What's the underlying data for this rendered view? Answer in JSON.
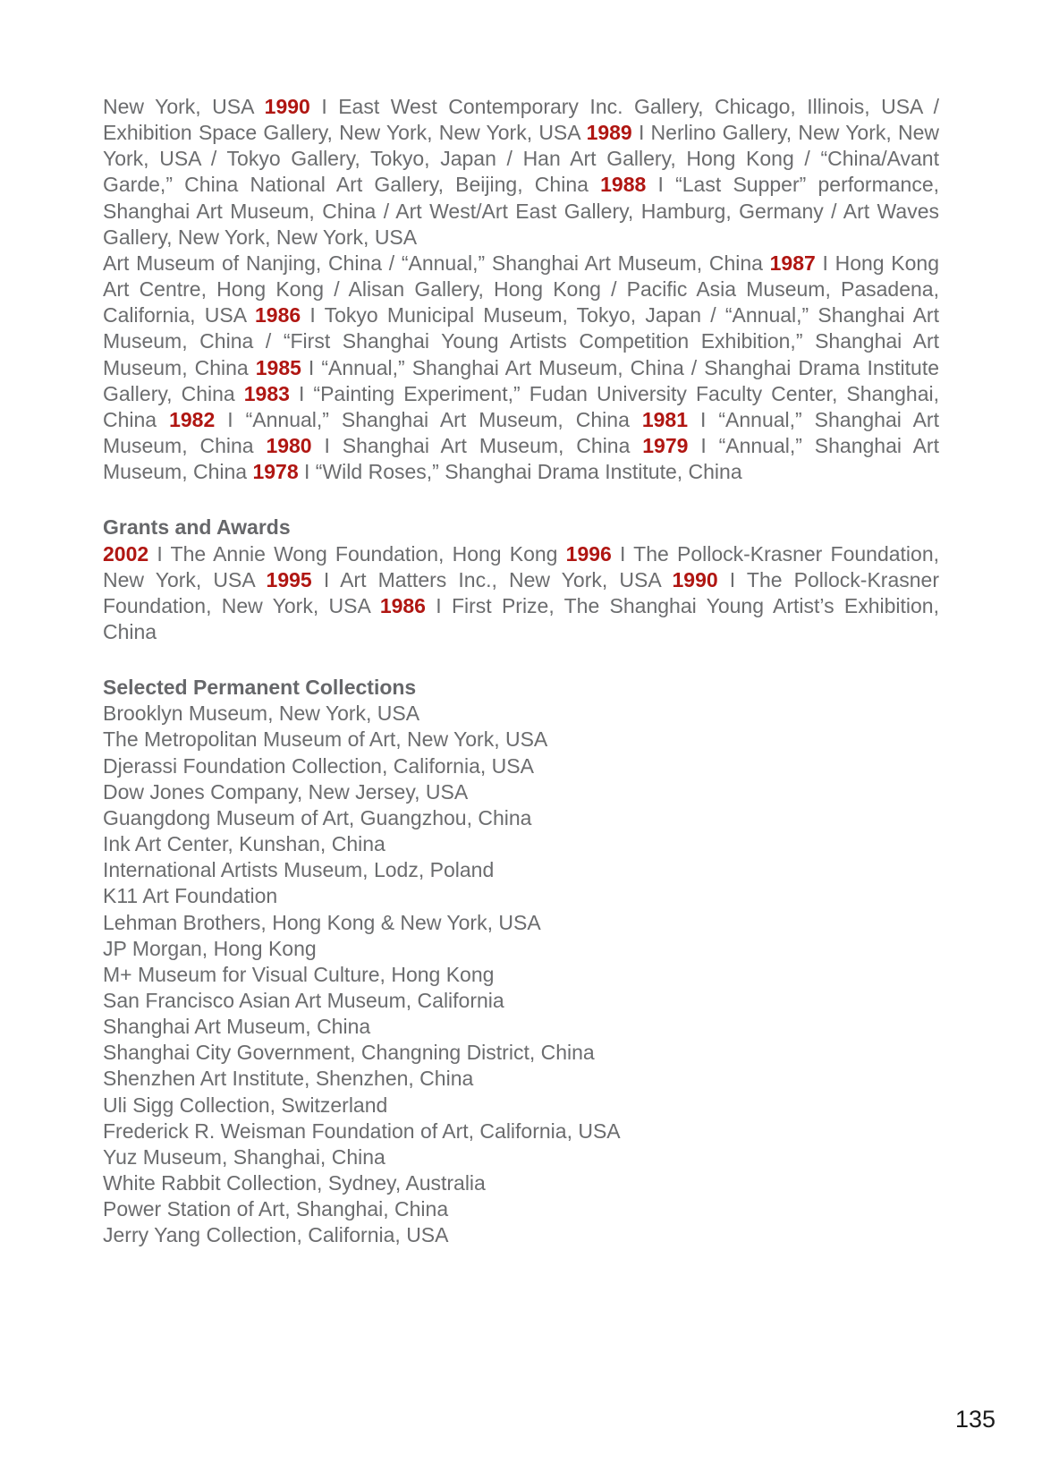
{
  "page": {
    "number": "135"
  },
  "colors": {
    "body_text": "#6b6c6e",
    "year_accent": "#b01612",
    "page_number": "#1b1b1b",
    "background": "#ffffff"
  },
  "exhibitions": {
    "paragraphs": [
      {
        "runs": [
          {
            "t": "New York, USA "
          },
          {
            "t": "1990",
            "year": true
          },
          {
            "t": " I East West Contemporary Inc. Gallery, Chicago, Illinois, USA / Exhibition Space Gallery, New York, New York, USA "
          },
          {
            "t": "1989",
            "year": true
          },
          {
            "t": " I Nerlino Gallery, New York, New York, USA / Tokyo Gallery, Tokyo, Japan / Han Art Gallery, Hong Kong / “China/Avant Garde,” China National Art Gallery, Beijing, China "
          },
          {
            "t": "1988",
            "year": true
          },
          {
            "t": " I “Last Supper” performance, Shanghai Art Museum, China / Art West/Art East Gallery, Hamburg, Germany / Art Waves Gallery, New York, New York, USA"
          }
        ]
      },
      {
        "runs": [
          {
            "t": "Art Museum of Nanjing, China / “Annual,” Shanghai Art Museum, China "
          },
          {
            "t": "1987",
            "year": true
          },
          {
            "t": " I Hong Kong Art Centre, Hong Kong / Alisan Gallery, Hong Kong / Pacific Asia Museum, Pasadena, California, USA "
          },
          {
            "t": "1986",
            "year": true
          },
          {
            "t": " I Tokyo Municipal Museum, Tokyo, Japan / “Annual,” Shanghai Art Museum, China / “First Shanghai Young Artists Competition Exhibition,” Shanghai Art Museum, China "
          },
          {
            "t": "1985",
            "year": true
          },
          {
            "t": " I “Annual,” Shanghai Art Museum, China / Shanghai Drama Institute Gallery, China "
          },
          {
            "t": "1983",
            "year": true
          },
          {
            "t": " I “Painting Experiment,” Fudan University Faculty Center, Shanghai, China "
          },
          {
            "t": "1982",
            "year": true
          },
          {
            "t": " I “Annual,” Shanghai Art Museum, China "
          },
          {
            "t": "1981",
            "year": true
          },
          {
            "t": " I “Annual,” Shanghai Art Museum, China "
          },
          {
            "t": "1980",
            "year": true
          },
          {
            "t": " I Shanghai Art Museum, China "
          },
          {
            "t": "1979",
            "year": true
          },
          {
            "t": " I “Annual,” Shanghai Art Museum, China "
          },
          {
            "t": "1978",
            "year": true
          },
          {
            "t": " I “Wild Roses,” Shanghai Drama Institute, China"
          }
        ]
      }
    ]
  },
  "grants": {
    "heading": "Grants and Awards",
    "paragraphs": [
      {
        "runs": [
          {
            "t": "2002",
            "year": true
          },
          {
            "t": " I The Annie Wong Foundation, Hong Kong "
          },
          {
            "t": "1996",
            "year": true
          },
          {
            "t": " I The Pollock-Krasner Foundation, New York, USA "
          },
          {
            "t": "1995",
            "year": true
          },
          {
            "t": " I Art Matters Inc., New York, USA "
          },
          {
            "t": "1990",
            "year": true
          },
          {
            "t": " I The Pollock-Krasner Foundation, New York, USA "
          },
          {
            "t": "1986",
            "year": true
          },
          {
            "t": " I First Prize, The Shanghai Young Artist’s Exhibition, China"
          }
        ]
      }
    ]
  },
  "collections": {
    "heading": "Selected Permanent Collections",
    "items": [
      "Brooklyn Museum, New York, USA",
      "The Metropolitan Museum of Art, New York, USA",
      "Djerassi Foundation Collection, California, USA",
      "Dow Jones Company, New Jersey, USA",
      "Guangdong Museum of Art, Guangzhou, China",
      "Ink Art Center, Kunshan, China",
      "International Artists Museum, Lodz, Poland",
      "K11 Art Foundation",
      "Lehman Brothers, Hong Kong & New York, USA",
      "JP Morgan, Hong Kong",
      "M+ Museum for Visual Culture, Hong Kong",
      "San Francisco Asian Art Museum, California",
      "Shanghai Art Museum, China",
      "Shanghai City Government, Changning District, China",
      "Shenzhen Art Institute, Shenzhen, China",
      "Uli Sigg Collection, Switzerland",
      "Frederick R. Weisman Foundation of Art, California, USA",
      "Yuz Museum, Shanghai, China",
      "White Rabbit Collection, Sydney, Australia",
      "Power Station of Art, Shanghai, China",
      "Jerry Yang Collection, California, USA"
    ]
  }
}
